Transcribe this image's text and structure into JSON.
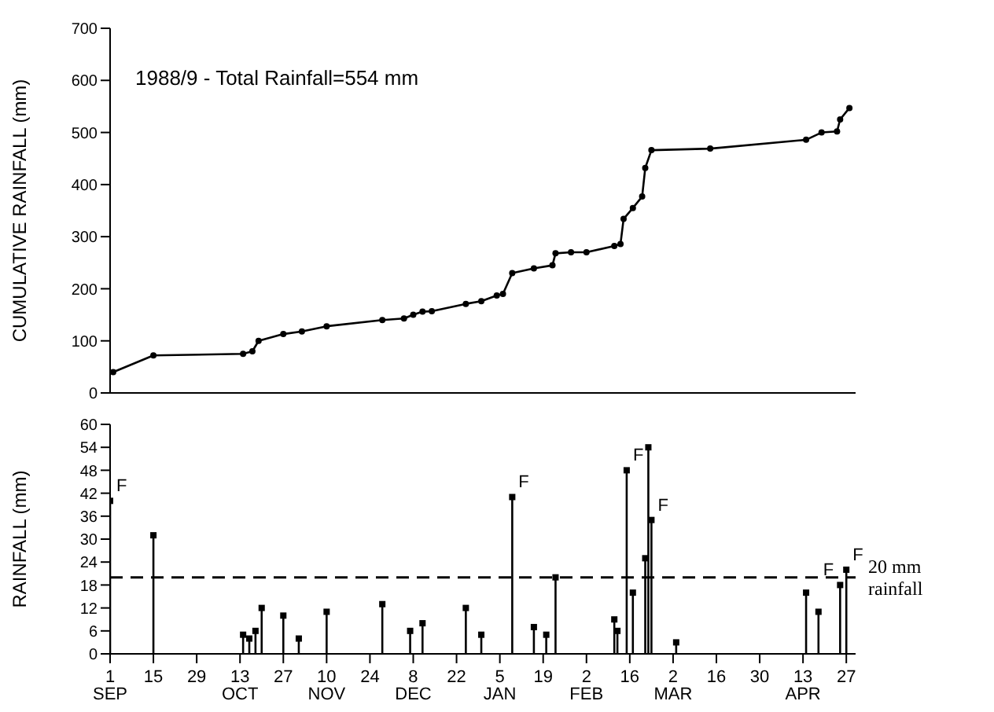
{
  "chart_data": [
    {
      "type": "line",
      "title": "1988/9 - Total Rainfall=554 mm",
      "ylabel": "CUMULATIVE RAINFALL (mm)",
      "color": "#000000",
      "marker": "circle",
      "tick_labels": "y",
      "x": [
        "1988-09-02",
        "1988-09-15",
        "1988-10-14",
        "1988-10-17",
        "1988-10-19",
        "1988-10-27",
        "1988-11-02",
        "1988-11-10",
        "1988-11-28",
        "1988-12-05",
        "1988-12-08",
        "1988-12-11",
        "1988-12-14",
        "1988-12-25",
        "1988-12-30",
        "1989-01-04",
        "1989-01-06",
        "1989-01-09",
        "1989-01-16",
        "1989-01-22",
        "1989-01-23",
        "1989-01-28",
        "1989-02-02",
        "1989-02-11",
        "1989-02-13",
        "1989-02-14",
        "1989-02-17",
        "1989-02-20",
        "1989-02-21",
        "1989-02-23",
        "1989-03-14",
        "1989-04-14",
        "1989-04-19",
        "1989-04-24",
        "1989-04-25",
        "1989-04-28"
      ],
      "values": [
        40,
        72,
        75,
        80,
        100,
        113,
        118,
        128,
        140,
        143,
        150,
        156,
        157,
        171,
        176,
        187,
        190,
        230,
        239,
        245,
        268,
        270,
        270,
        282,
        286,
        334,
        355,
        377,
        432,
        466,
        469,
        486,
        500,
        502,
        525,
        547
      ],
      "xlim": [
        "1988-09-01",
        "1989-04-30"
      ],
      "ylim": [
        0,
        700
      ],
      "yticks": [
        0,
        100,
        200,
        300,
        400,
        500,
        600,
        700
      ]
    },
    {
      "type": "lollipop",
      "ylabel": "RAINFALL (mm)",
      "color": "#000000",
      "marker": "square",
      "x": [
        "1988-09-01",
        "1988-09-15",
        "1988-10-14",
        "1988-10-16",
        "1988-10-18",
        "1988-10-20",
        "1988-10-27",
        "1988-11-01",
        "1988-11-10",
        "1988-11-28",
        "1988-12-07",
        "1988-12-11",
        "1988-12-25",
        "1988-12-30",
        "1989-01-09",
        "1989-01-16",
        "1989-01-20",
        "1989-01-23",
        "1989-02-11",
        "1989-02-12",
        "1989-02-15",
        "1989-02-17",
        "1989-02-21",
        "1989-02-22",
        "1989-02-23",
        "1989-03-03",
        "1989-04-14",
        "1989-04-18",
        "1989-04-25",
        "1989-04-27"
      ],
      "values": [
        40,
        31,
        5,
        4,
        6,
        12,
        10,
        4,
        11,
        13,
        6,
        8,
        12,
        5,
        41,
        7,
        5,
        20,
        9,
        6,
        48,
        16,
        25,
        54,
        35,
        3,
        16,
        11,
        18,
        22
      ],
      "xlim": [
        "1988-09-01",
        "1989-04-30"
      ],
      "ylim": [
        0,
        60
      ],
      "yticks": [
        0,
        6,
        12,
        18,
        24,
        30,
        36,
        42,
        48,
        54,
        60
      ],
      "xticks": [
        {
          "value": "1988-09-01",
          "label": "1 SEP"
        },
        {
          "value": "1988-09-15",
          "label": "15"
        },
        {
          "value": "1988-09-29",
          "label": "29"
        },
        {
          "value": "1988-10-13",
          "label": "13 OCT"
        },
        {
          "value": "1988-10-27",
          "label": "27"
        },
        {
          "value": "1988-11-10",
          "label": "10 NOV"
        },
        {
          "value": "1988-11-24",
          "label": "24"
        },
        {
          "value": "1988-12-08",
          "label": "8 DEC"
        },
        {
          "value": "1988-12-22",
          "label": "22"
        },
        {
          "value": "1989-01-05",
          "label": "5 JAN"
        },
        {
          "value": "1989-01-19",
          "label": "19"
        },
        {
          "value": "1989-02-02",
          "label": "2 FEB"
        },
        {
          "value": "1989-02-16",
          "label": "16"
        },
        {
          "value": "1989-03-02",
          "label": "2 MAR"
        },
        {
          "value": "1989-03-16",
          "label": "16"
        },
        {
          "value": "1989-03-30",
          "label": "30"
        },
        {
          "value": "1989-04-13",
          "label": "13 APR"
        },
        {
          "value": "1989-04-27",
          "label": "27"
        }
      ],
      "ref_lines": [
        {
          "axis": "y",
          "value": 20,
          "label": "20 mm rainfall",
          "line_style": "dashed"
        }
      ],
      "annotations": [
        {
          "text": "F",
          "x": "1988-09-01",
          "y": 40
        },
        {
          "text": "F",
          "x": "1989-01-09",
          "y": 41
        },
        {
          "text": "F",
          "x": "1989-02-15",
          "y": 48
        },
        {
          "text": "F",
          "x": "1989-02-23",
          "y": 35
        },
        {
          "text": "F",
          "x": "1989-04-25",
          "y": 18
        },
        {
          "text": "F",
          "x": "1989-04-27",
          "y": 22
        }
      ]
    }
  ]
}
